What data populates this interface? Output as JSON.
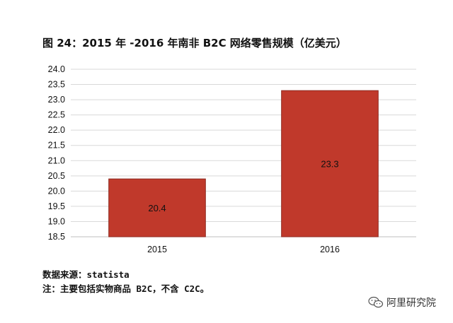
{
  "title": "图 24：2015 年 -2016 年南非 B2C 网络零售规模（亿美元）",
  "source": "数据来源：statista",
  "note": "注：主要包括实物商品 B2C，不含 C2C。",
  "watermark": "阿里研究院",
  "colors": {
    "bar": "#c0392b",
    "bar_edge": "#8e2a20",
    "grid": "#d9d9d9",
    "axis": "#bfbfbf"
  },
  "chart_data": {
    "type": "bar",
    "categories": [
      "2015",
      "2016"
    ],
    "values": [
      20.4,
      23.3
    ],
    "data_labels": [
      "20.4",
      "23.3"
    ],
    "ylim": [
      18.5,
      24.0
    ],
    "yticks": [
      "18.5",
      "19.0",
      "19.5",
      "20.0",
      "20.5",
      "21.0",
      "21.5",
      "22.0",
      "22.5",
      "23.0",
      "23.5",
      "24.0"
    ],
    "grid": true,
    "xlabel": "",
    "ylabel": ""
  }
}
